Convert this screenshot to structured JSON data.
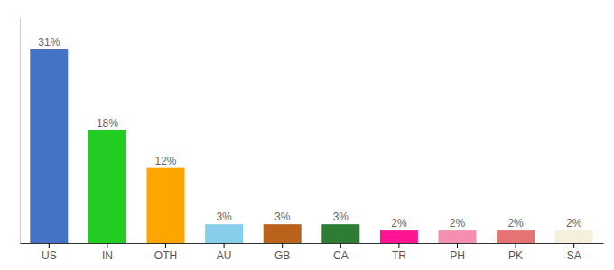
{
  "chart_data": {
    "type": "bar",
    "categories": [
      "US",
      "IN",
      "OTH",
      "AU",
      "GB",
      "CA",
      "TR",
      "PH",
      "PK",
      "SA"
    ],
    "values": [
      31,
      18,
      12,
      3,
      3,
      3,
      2,
      2,
      2,
      2
    ],
    "value_labels": [
      "31%",
      "18%",
      "12%",
      "3%",
      "3%",
      "3%",
      "2%",
      "2%",
      "2%",
      "2%"
    ],
    "colors": [
      "#4472c4",
      "#22cc22",
      "#ffa500",
      "#87ceeb",
      "#b8621b",
      "#2e7d32",
      "#ff1493",
      "#f48fb1",
      "#e57373",
      "#f5f0dc"
    ],
    "ylim": [
      0,
      36
    ],
    "data_labels": true,
    "tick_labels": "x"
  }
}
